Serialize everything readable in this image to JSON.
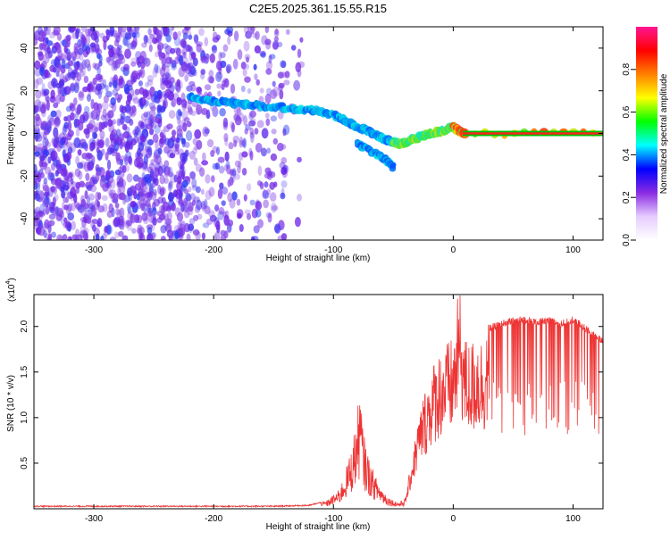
{
  "page_title": "C2E5.2025.361.15.55.R15",
  "colorbar": {
    "label": "Normalized spectral amplitude",
    "ticks": [
      0.0,
      0.2,
      0.4,
      0.6,
      0.8
    ],
    "tick_labels": [
      "0.0",
      "0.2",
      "0.4",
      "0.6",
      "0.8"
    ],
    "colors": [
      "#ffffff",
      "#e6ccff",
      "#8a2be2",
      "#0000ff",
      "#00ffff",
      "#00ff00",
      "#ffff00",
      "#ff8000",
      "#ff0000",
      "#ff1493"
    ]
  },
  "chart_data": [
    {
      "type": "heatmap",
      "title": "C2E5.2025.361.15.55.R15",
      "xlabel": "Height of straight line (km)",
      "ylabel": "Frequency (Hz)",
      "xlim": [
        -350,
        125
      ],
      "ylim": [
        -50,
        50
      ],
      "x_ticks": [
        -300,
        -200,
        -100,
        0,
        100
      ],
      "x_tick_labels": [
        "-300",
        "-200",
        "-100",
        "0",
        "100"
      ],
      "y_ticks": [
        -40,
        -20,
        0,
        20,
        40
      ],
      "y_tick_labels": [
        "-40",
        "-20",
        "0",
        "20",
        "40"
      ],
      "value_range": [
        0,
        1
      ],
      "ridge_main": {
        "x": [
          -220,
          -200,
          -180,
          -160,
          -140,
          -120,
          -100,
          -90,
          -80,
          -70,
          -60,
          -50,
          -45,
          -40,
          -30,
          -20,
          -10,
          0,
          5,
          10,
          125
        ],
        "y": [
          17,
          15,
          14,
          13,
          12,
          11,
          9,
          6,
          3,
          1,
          -2,
          -4,
          -5,
          -4,
          -2,
          0,
          1,
          3,
          1,
          0,
          0
        ]
      },
      "ridge_secondary": {
        "x": [
          -80,
          -70,
          -60,
          -55,
          -50
        ],
        "y": [
          -5,
          -8,
          -11,
          -13,
          -16
        ]
      }
    },
    {
      "type": "line",
      "xlabel": "Height of straight line (km)",
      "ylabel": "SNR (10 * v/v)",
      "y_multiplier_label": "(x10",
      "y_multiplier_exponent": "4",
      "y_multiplier_suffix": ")",
      "xlim": [
        -350,
        125
      ],
      "ylim": [
        0,
        2.35
      ],
      "x_ticks": [
        -300,
        -200,
        -100,
        0,
        100
      ],
      "x_tick_labels": [
        "-300",
        "-200",
        "-100",
        "0",
        "100"
      ],
      "y_ticks": [
        0.5,
        1.0,
        1.5,
        2.0
      ],
      "y_tick_labels": [
        "0.5",
        "1.0",
        "1.5",
        "2.0"
      ],
      "color": "#ee3333",
      "series": [
        {
          "x": [
            -350,
            -300,
            -250,
            -200,
            -150,
            -120,
            -105,
            -95,
            -90,
            -85,
            -80,
            -78,
            -75,
            -70,
            -65,
            -60,
            -55,
            -50,
            -45,
            -40,
            -35,
            -30,
            -25,
            -20,
            -15,
            -10,
            -5,
            0,
            5,
            10,
            15,
            20,
            25,
            30,
            40,
            50,
            60,
            70,
            80,
            90,
            100,
            110,
            120,
            125
          ],
          "y": [
            0.02,
            0.02,
            0.02,
            0.02,
            0.02,
            0.03,
            0.08,
            0.18,
            0.35,
            0.55,
            0.9,
            1.12,
            0.7,
            0.45,
            0.3,
            0.2,
            0.12,
            0.08,
            0.06,
            0.1,
            0.5,
            0.9,
            1.2,
            1.4,
            1.6,
            1.7,
            1.75,
            1.8,
            2.35,
            1.8,
            1.75,
            1.85,
            1.8,
            2.0,
            2.05,
            2.08,
            2.1,
            2.07,
            2.08,
            2.05,
            2.1,
            2.0,
            1.9,
            1.85
          ]
        }
      ]
    }
  ]
}
